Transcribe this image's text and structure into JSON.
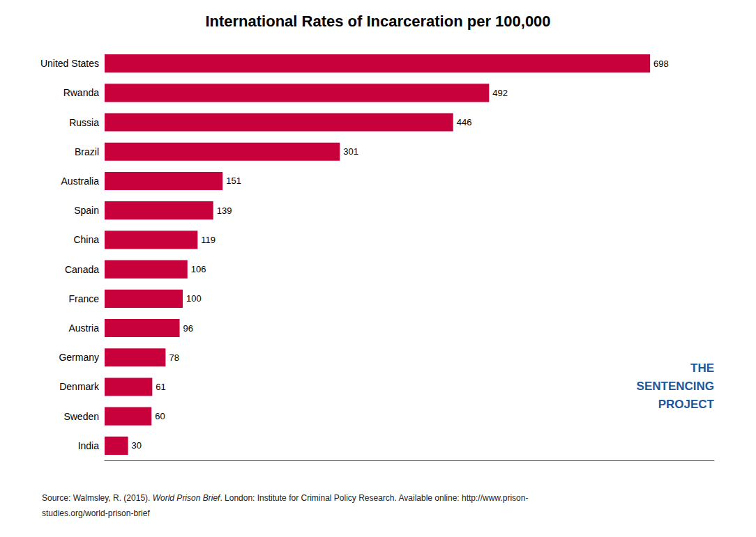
{
  "chart_data": {
    "type": "bar",
    "orientation": "horizontal",
    "title": "International Rates of Incarceration per 100,000",
    "categories": [
      "United States",
      "Rwanda",
      "Russia",
      "Brazil",
      "Australia",
      "Spain",
      "China",
      "Canada",
      "France",
      "Austria",
      "Germany",
      "Denmark",
      "Sweden",
      "India"
    ],
    "values": [
      698,
      492,
      446,
      301,
      151,
      139,
      119,
      106,
      100,
      96,
      78,
      61,
      60,
      30
    ],
    "color": "#C8003C",
    "xlim": [
      0,
      780
    ],
    "data_labels": true,
    "tick_labels": "y",
    "grid": false,
    "source": [
      [
        "Source: Walmsley, R. (2015). ",
        "World Prison Brief",
        ". London: Institute for Criminal Policy Research. Available online: http://www.prison-"
      ],
      [
        "studies.org/world-prison-brief"
      ]
    ],
    "logo": {
      "text": [
        "THE",
        "SENTENCING",
        "PROJECT"
      ],
      "color": "#1E5799"
    }
  }
}
